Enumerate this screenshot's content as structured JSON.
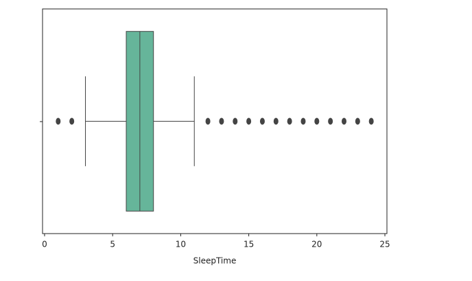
{
  "chart_data": {
    "type": "box",
    "orientation": "horizontal",
    "x_label": "SleepTime",
    "xlim": [
      -0.15,
      25.15
    ],
    "xticks": [
      0,
      5,
      10,
      15,
      20,
      25
    ],
    "color": "#66b59a",
    "line_color": "#444444",
    "boxes": [
      {
        "whislo": 3,
        "q1": 6,
        "median": 7,
        "q3": 8,
        "whishi": 11,
        "fliers": [
          1,
          2,
          12,
          13,
          14,
          15,
          16,
          17,
          18,
          19,
          20,
          21,
          22,
          23,
          24
        ]
      }
    ]
  }
}
